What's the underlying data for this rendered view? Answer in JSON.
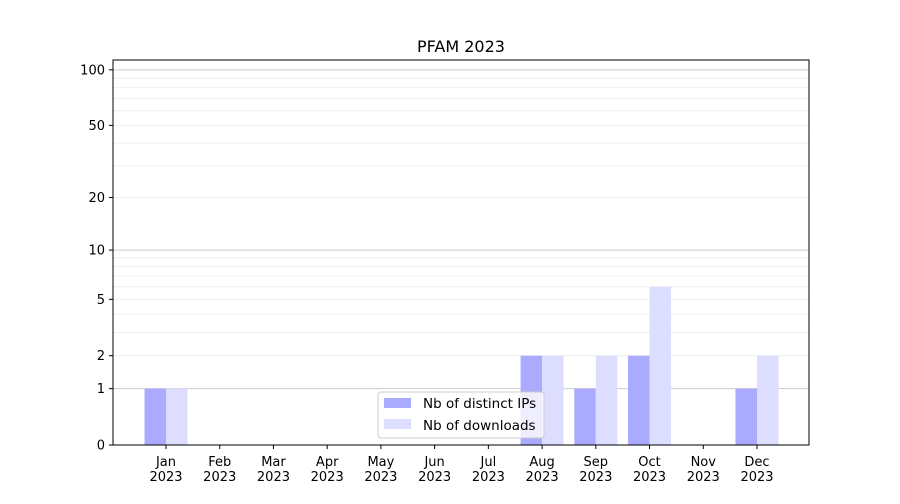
{
  "chart_data": {
    "type": "bar",
    "title": "PFAM 2023",
    "xlabel": "",
    "ylabel": "",
    "yscale": "log(1+y)",
    "ylim": [
      0,
      113
    ],
    "yticks": [
      0,
      1,
      2,
      5,
      10,
      20,
      50,
      100
    ],
    "ytick_labels": [
      "0",
      "1",
      "2",
      "5",
      "10",
      "20",
      "50",
      "100"
    ],
    "grid": "horizontal, major and minor",
    "categories": [
      "Jan\n2023",
      "Feb\n2023",
      "Mar\n2023",
      "Apr\n2023",
      "May\n2023",
      "Jun\n2023",
      "Jul\n2023",
      "Aug\n2023",
      "Sep\n2023",
      "Oct\n2023",
      "Nov\n2023",
      "Dec\n2023"
    ],
    "series": [
      {
        "name": "Nb of distinct IPs",
        "color": "#aaaaff",
        "values": [
          1,
          0,
          0,
          0,
          0,
          0,
          0,
          2,
          1,
          2,
          0,
          1
        ]
      },
      {
        "name": "Nb of downloads",
        "color": "#ddddff",
        "values": [
          1,
          0,
          0,
          0,
          0,
          0,
          0,
          2,
          2,
          6,
          0,
          2
        ]
      }
    ],
    "legend": {
      "placement": "lower-center"
    }
  }
}
